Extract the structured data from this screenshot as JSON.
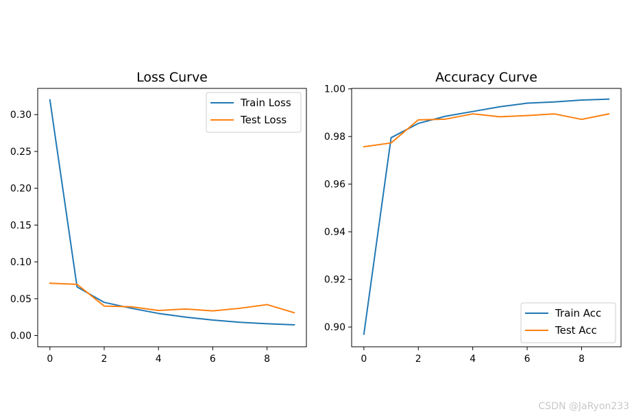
{
  "watermark": "CSDN @JaRyon233",
  "chart_data": [
    {
      "type": "line",
      "title": "Loss Curve",
      "xlabel": "",
      "ylabel": "",
      "xlim": [
        -0.45,
        9.45
      ],
      "ylim": [
        -0.0153,
        0.3356
      ],
      "x_ticks": [
        0,
        2,
        4,
        6,
        8
      ],
      "y_ticks": [
        0.0,
        0.05,
        0.1,
        0.15,
        0.2,
        0.25,
        0.3
      ],
      "y_tick_labels": [
        "0.00",
        "0.05",
        "0.10",
        "0.15",
        "0.20",
        "0.25",
        "0.30"
      ],
      "legend_position": "top-right",
      "x": [
        0,
        1,
        2,
        3,
        4,
        5,
        6,
        7,
        8,
        9
      ],
      "series": [
        {
          "name": "Train Loss",
          "color": "#1f77b4",
          "values": [
            0.32,
            0.066,
            0.045,
            0.037,
            0.03,
            0.025,
            0.021,
            0.018,
            0.016,
            0.0145
          ]
        },
        {
          "name": "Test Loss",
          "color": "#ff7f0e",
          "values": [
            0.071,
            0.0695,
            0.04,
            0.039,
            0.034,
            0.036,
            0.0335,
            0.037,
            0.042,
            0.031
          ]
        }
      ]
    },
    {
      "type": "line",
      "title": "Accuracy Curve",
      "xlabel": "",
      "ylabel": "",
      "xlim": [
        -0.45,
        9.45
      ],
      "ylim": [
        0.8917,
        1.0002
      ],
      "x_ticks": [
        0,
        2,
        4,
        6,
        8
      ],
      "y_ticks": [
        0.9,
        0.92,
        0.94,
        0.96,
        0.98,
        1.0
      ],
      "y_tick_labels": [
        "0.90",
        "0.92",
        "0.94",
        "0.96",
        "0.98",
        "1.00"
      ],
      "legend_position": "bottom-right",
      "x": [
        0,
        1,
        2,
        3,
        4,
        5,
        6,
        7,
        8,
        9
      ],
      "series": [
        {
          "name": "Train Acc",
          "color": "#1f77b4",
          "values": [
            0.897,
            0.9795,
            0.9855,
            0.9885,
            0.9905,
            0.9925,
            0.994,
            0.9945,
            0.9953,
            0.9957
          ]
        },
        {
          "name": "Test Acc",
          "color": "#ff7f0e",
          "values": [
            0.9757,
            0.9773,
            0.987,
            0.9873,
            0.9895,
            0.9883,
            0.9888,
            0.9895,
            0.9872,
            0.9895
          ]
        }
      ]
    }
  ]
}
